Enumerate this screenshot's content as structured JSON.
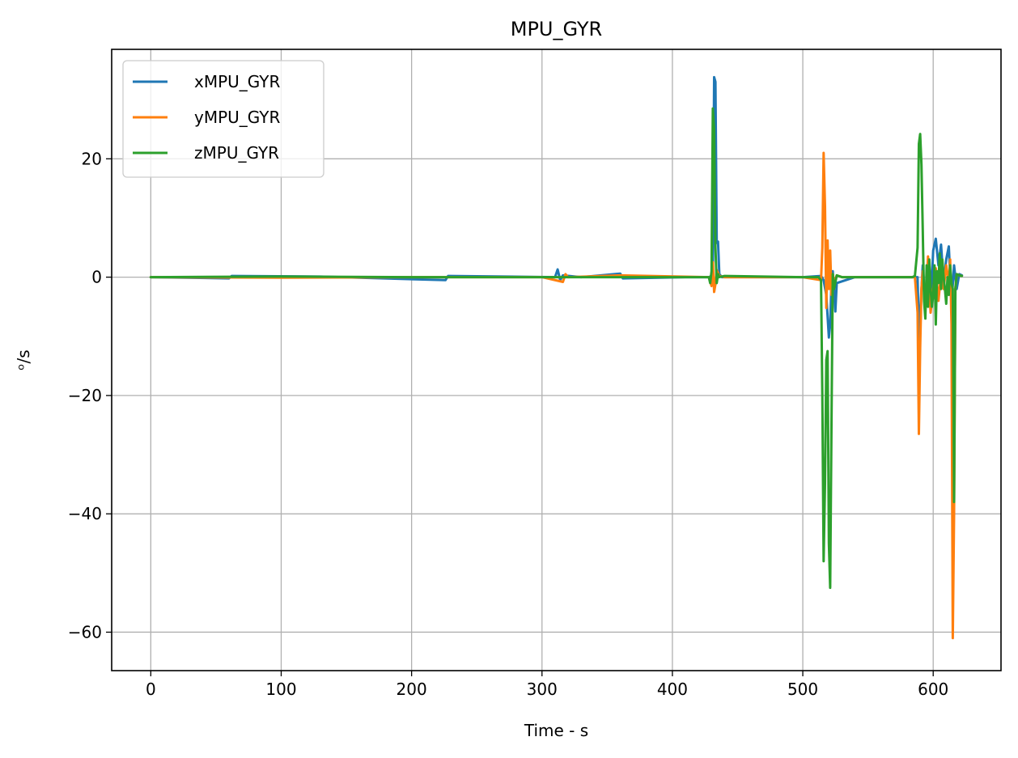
{
  "chart_data": {
    "type": "line",
    "title": "MPU_GYR",
    "xlabel": "Time - s",
    "ylabel": "ᵒ/s",
    "xlim": [
      -30,
      652
    ],
    "ylim": [
      -66.5,
      38.5
    ],
    "xticks": [
      0,
      100,
      200,
      300,
      400,
      500,
      600
    ],
    "yticks": [
      -60,
      -40,
      -20,
      0,
      20
    ],
    "xtick_labels": [
      "0",
      "100",
      "200",
      "300",
      "400",
      "500",
      "600"
    ],
    "ytick_labels": [
      "−60",
      "−40",
      "−20",
      "0",
      "20"
    ],
    "grid": true,
    "legend_position": "top-left",
    "series": [
      {
        "name": "xMPU_GYR",
        "color": "#1f77b4",
        "x": [
          0,
          60,
          62,
          130,
          226,
          228,
          310,
          312,
          314,
          316,
          330,
          360,
          362,
          410,
          428,
          430,
          431,
          432,
          433,
          434,
          435,
          436,
          438,
          440,
          500,
          514,
          516,
          518,
          520,
          521,
          522,
          523,
          524,
          525,
          526,
          540,
          588,
          589,
          590,
          592,
          594,
          596,
          598,
          600,
          602,
          604,
          606,
          608,
          610,
          612,
          614,
          616,
          618,
          620,
          622
        ],
        "y": [
          0,
          -0.2,
          0.2,
          0.1,
          -0.5,
          0.2,
          0,
          1.3,
          -0.5,
          0.3,
          0,
          0.6,
          -0.2,
          0,
          0,
          0.2,
          0.5,
          33.8,
          33,
          5.8,
          6,
          0.5,
          0,
          0,
          0,
          0.2,
          -0.5,
          -3,
          -10.2,
          -8,
          -1,
          1,
          -2.5,
          -5.8,
          -1,
          0,
          0,
          -11,
          -6,
          2,
          -4.5,
          3,
          -5,
          4.5,
          6.5,
          2,
          5.5,
          -1,
          3,
          5.2,
          -4.5,
          2,
          -2,
          0.5,
          0.3
        ]
      },
      {
        "name": "yMPU_GYR",
        "color": "#ff7f0e",
        "x": [
          0,
          100,
          200,
          300,
          316,
          318,
          320,
          360,
          428,
          430,
          431,
          432,
          433,
          434,
          436,
          440,
          500,
          514,
          515,
          516,
          517,
          518,
          519,
          520,
          521,
          522,
          523,
          524,
          526,
          530,
          586,
          588,
          589,
          590,
          591,
          592,
          594,
          596,
          598,
          600,
          602,
          604,
          606,
          608,
          610,
          612,
          613,
          614,
          615,
          616,
          617,
          618,
          620,
          622
        ],
        "y": [
          0,
          -0.1,
          0,
          0,
          -0.8,
          0.5,
          0,
          0.3,
          0,
          -1.5,
          2.5,
          -2.5,
          -1.2,
          1.2,
          0.2,
          0,
          0,
          -0.5,
          5,
          21,
          12,
          -5.2,
          6.2,
          -2,
          4.5,
          -3,
          0.5,
          -1,
          0.3,
          0,
          0,
          -6,
          -26.5,
          -12,
          -2,
          1,
          -5.5,
          3.5,
          -6,
          -2,
          1.5,
          -4,
          0.5,
          -2,
          2,
          -1,
          3,
          -8,
          -61,
          -40,
          -2,
          0.5,
          0.3,
          0.2
        ]
      },
      {
        "name": "zMPU_GYR",
        "color": "#2ca02c",
        "x": [
          0,
          100,
          200,
          300,
          428,
          429,
          430,
          431,
          432,
          433,
          434,
          435,
          436,
          440,
          500,
          512,
          514,
          515,
          516,
          517,
          518,
          519,
          520,
          521,
          522,
          523,
          524,
          526,
          530,
          584,
          586,
          588,
          589,
          590,
          591,
          592,
          593,
          594,
          595,
          596,
          597,
          598,
          599,
          600,
          601,
          602,
          603,
          604,
          605,
          606,
          607,
          608,
          609,
          610,
          611,
          612,
          613,
          614,
          615,
          616,
          617,
          618,
          620,
          622
        ],
        "y": [
          0,
          0.1,
          0,
          0,
          0,
          -1,
          1,
          28.5,
          25,
          5,
          -1,
          0.5,
          0,
          0.2,
          0,
          0,
          -0.5,
          -20,
          -48,
          -35,
          -14,
          -12.5,
          -45,
          -52.5,
          -25,
          0.5,
          -2,
          0.3,
          0,
          0,
          0.2,
          5,
          22.5,
          24.2,
          19,
          8,
          -4,
          -7,
          2,
          -5,
          3,
          -2,
          -5,
          -3,
          2,
          -8,
          1,
          -1,
          4,
          -2,
          3,
          0,
          -2,
          -4.5,
          0,
          -3,
          2,
          -1,
          -2,
          -38,
          -2,
          0.5,
          0.3,
          0.2
        ]
      }
    ]
  }
}
